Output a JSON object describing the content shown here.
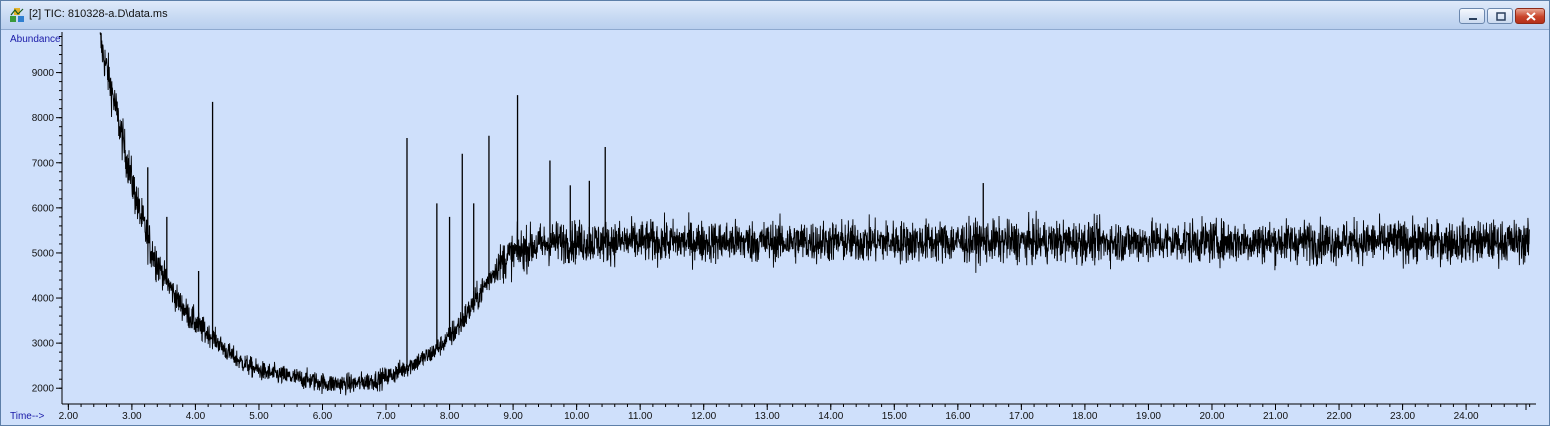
{
  "window": {
    "title": "[2] TIC: 810328-a.D\\data.ms",
    "icon": "chromatogram-app-icon",
    "controls": [
      "minimize-icon",
      "maximize-icon",
      "close-icon"
    ]
  },
  "colors": {
    "plot_background": "#cfe0fb",
    "trace": "#000000",
    "axis_title": "#1a1aa8",
    "close_button": "#c9442a"
  },
  "chart_data": {
    "type": "line",
    "title": "",
    "ylabel": "Abundance",
    "xlabel": "Time-->",
    "xlim": [
      1.9,
      25.1
    ],
    "ylim": [
      1650,
      9900
    ],
    "grid": false,
    "y_ticks": [
      2000,
      3000,
      4000,
      5000,
      6000,
      7000,
      8000,
      9000
    ],
    "y_tick_labels": [
      "2000",
      "3000",
      "4000",
      "5000",
      "6000",
      "7000",
      "8000",
      "9000"
    ],
    "x_ticks": [
      2,
      3,
      4,
      5,
      6,
      7,
      8,
      9,
      10,
      11,
      12,
      13,
      14,
      15,
      16,
      17,
      18,
      19,
      20,
      21,
      22,
      23,
      24
    ],
    "x_tick_labels": [
      "2.00",
      "3.00",
      "4.00",
      "5.00",
      "6.00",
      "7.00",
      "8.00",
      "9.00",
      "10.00",
      "11.00",
      "12.00",
      "13.00",
      "14.00",
      "15.00",
      "16.00",
      "17.00",
      "18.00",
      "19.00",
      "20.00",
      "21.00",
      "22.00",
      "23.00",
      "24.00"
    ],
    "series": [
      {
        "x": [
          2.5,
          2.7,
          2.9,
          3.1,
          3.3,
          3.5,
          3.7,
          3.9,
          4.1,
          4.3,
          4.5,
          4.7,
          4.9,
          5.1,
          5.3,
          5.5,
          5.7,
          5.9,
          6.1,
          6.3,
          6.5,
          6.7,
          6.9,
          7.1,
          7.3,
          7.5,
          7.7,
          7.9,
          8.1,
          8.3,
          8.5,
          8.7,
          8.9,
          9.1,
          9.3,
          9.5,
          9.7,
          9.9,
          10.1,
          10.3,
          10.5,
          10.7,
          11,
          11.5,
          12,
          12.5,
          13,
          13.5,
          14,
          14.5,
          15,
          15.5,
          16,
          16.5,
          17,
          17.5,
          18,
          18.5,
          19,
          19.5,
          20,
          20.5,
          21,
          21.5,
          22,
          22.5,
          23,
          23.5,
          24,
          24.5,
          25
        ],
        "y": [
          9700,
          8500,
          7200,
          6000,
          5100,
          4500,
          4000,
          3600,
          3300,
          3100,
          2800,
          2600,
          2450,
          2350,
          2300,
          2250,
          2200,
          2150,
          2100,
          2100,
          2100,
          2150,
          2200,
          2300,
          2450,
          2600,
          2750,
          3000,
          3300,
          3700,
          4150,
          4600,
          4900,
          5050,
          5150,
          5200,
          5250,
          5250,
          5250,
          5250,
          5250,
          5250,
          5250,
          5250,
          5250,
          5250,
          5250,
          5250,
          5250,
          5250,
          5250,
          5250,
          5250,
          5250,
          5250,
          5250,
          5250,
          5250,
          5250,
          5250,
          5250,
          5250,
          5250,
          5250,
          5250,
          5250,
          5250,
          5250,
          5250,
          5250,
          5250
        ]
      }
    ],
    "peaks": [
      {
        "x": 3.25,
        "y": 6900
      },
      {
        "x": 3.55,
        "y": 5800
      },
      {
        "x": 4.05,
        "y": 4600
      },
      {
        "x": 4.27,
        "y": 8350
      },
      {
        "x": 7.33,
        "y": 7550
      },
      {
        "x": 7.8,
        "y": 6100
      },
      {
        "x": 8.0,
        "y": 5800
      },
      {
        "x": 8.2,
        "y": 7200
      },
      {
        "x": 8.38,
        "y": 6100
      },
      {
        "x": 8.62,
        "y": 7600
      },
      {
        "x": 9.07,
        "y": 8500
      },
      {
        "x": 9.58,
        "y": 7050
      },
      {
        "x": 9.9,
        "y": 6500
      },
      {
        "x": 10.2,
        "y": 6600
      },
      {
        "x": 10.45,
        "y": 7350
      },
      {
        "x": 16.4,
        "y": 6550
      }
    ]
  }
}
